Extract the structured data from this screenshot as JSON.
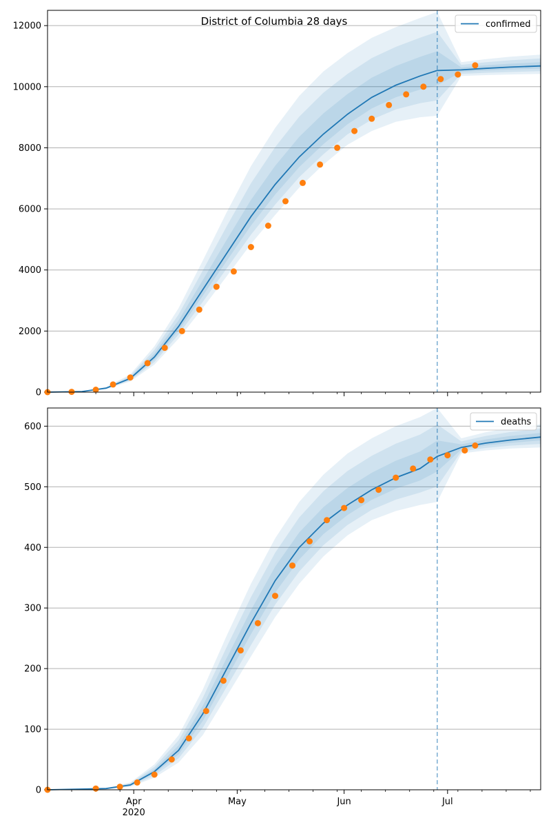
{
  "figure": {
    "title": "District of Columbia 28 days",
    "colors": {
      "median_line": "#1f77b4",
      "band": "#1f77b4",
      "observed": "#ff7f0e",
      "forecast_marker": "#1f77b4",
      "grid": "#b0b0b0"
    }
  },
  "chart_data": [
    {
      "type": "line",
      "title": "District of Columbia 28 days",
      "xlabel": "",
      "ylabel": "",
      "legend": [
        "confirmed"
      ],
      "legend_position": "top-right",
      "grid": "horizontal",
      "xlim": [
        "2020-03-07",
        "2020-07-28"
      ],
      "ylim": [
        0,
        12500
      ],
      "yticks": [
        0,
        2000,
        4000,
        6000,
        8000,
        10000,
        12000
      ],
      "xticks": [
        {
          "date": "2020-04-01",
          "label": "Apr",
          "sublabel": "2020"
        },
        {
          "date": "2020-05-01",
          "label": "May",
          "sublabel": ""
        },
        {
          "date": "2020-06-01",
          "label": "Jun",
          "sublabel": ""
        },
        {
          "date": "2020-07-01",
          "label": "Jul",
          "sublabel": ""
        }
      ],
      "forecast_start": "2020-06-28",
      "series": [
        {
          "name": "confirmed",
          "kind": "median",
          "x": [
            "2020-03-07",
            "2020-03-17",
            "2020-03-24",
            "2020-03-31",
            "2020-04-07",
            "2020-04-14",
            "2020-04-21",
            "2020-04-28",
            "2020-05-05",
            "2020-05-12",
            "2020-05-19",
            "2020-05-26",
            "2020-06-02",
            "2020-06-09",
            "2020-06-16",
            "2020-06-23",
            "2020-06-28",
            "2020-07-05",
            "2020-07-12",
            "2020-07-19",
            "2020-07-28"
          ],
          "values": [
            0,
            20,
            130,
            450,
            1150,
            2150,
            3350,
            4550,
            5750,
            6800,
            7700,
            8450,
            9100,
            9650,
            10050,
            10350,
            10530,
            10550,
            10600,
            10640,
            10680
          ]
        },
        {
          "name": "",
          "kind": "band",
          "x": [
            "2020-03-07",
            "2020-03-17",
            "2020-03-24",
            "2020-03-31",
            "2020-04-07",
            "2020-04-14",
            "2020-04-21",
            "2020-04-28",
            "2020-05-05",
            "2020-05-12",
            "2020-05-19",
            "2020-05-26",
            "2020-06-02",
            "2020-06-09",
            "2020-06-16",
            "2020-06-23",
            "2020-06-28",
            "2020-07-05",
            "2020-07-12",
            "2020-07-19",
            "2020-07-28"
          ],
          "low": [
            0,
            15,
            100,
            350,
            900,
            1750,
            2750,
            3800,
            4850,
            5800,
            6700,
            7450,
            8100,
            8550,
            8850,
            9000,
            9050,
            10350,
            10380,
            10400,
            10420
          ],
          "high": [
            0,
            25,
            170,
            580,
            1500,
            2750,
            4300,
            5900,
            7400,
            8650,
            9700,
            10500,
            11100,
            11600,
            11950,
            12250,
            12450,
            10800,
            10900,
            10980,
            11050
          ]
        },
        {
          "name": "",
          "kind": "observed",
          "x": [
            "2020-03-07",
            "2020-03-14",
            "2020-03-21",
            "2020-03-26",
            "2020-03-31",
            "2020-04-05",
            "2020-04-10",
            "2020-04-15",
            "2020-04-20",
            "2020-04-25",
            "2020-04-30",
            "2020-05-05",
            "2020-05-10",
            "2020-05-15",
            "2020-05-20",
            "2020-05-25",
            "2020-05-30",
            "2020-06-04",
            "2020-06-09",
            "2020-06-14",
            "2020-06-19",
            "2020-06-24",
            "2020-06-29",
            "2020-07-04",
            "2020-07-09"
          ],
          "values": [
            0,
            10,
            80,
            250,
            480,
            950,
            1450,
            2000,
            2700,
            3450,
            3950,
            4750,
            5450,
            6250,
            6850,
            7450,
            8000,
            8550,
            8950,
            9400,
            9750,
            10000,
            10250,
            10400,
            10700
          ]
        }
      ]
    },
    {
      "type": "line",
      "title": "",
      "xlabel": "",
      "ylabel": "",
      "legend": [
        "deaths"
      ],
      "legend_position": "top-right",
      "grid": "horizontal",
      "xlim": [
        "2020-03-07",
        "2020-07-28"
      ],
      "ylim": [
        0,
        630
      ],
      "yticks": [
        0,
        100,
        200,
        300,
        400,
        500,
        600
      ],
      "xticks": [
        {
          "date": "2020-04-01",
          "label": "Apr",
          "sublabel": "2020"
        },
        {
          "date": "2020-05-01",
          "label": "May",
          "sublabel": ""
        },
        {
          "date": "2020-06-01",
          "label": "Jun",
          "sublabel": ""
        },
        {
          "date": "2020-07-01",
          "label": "Jul",
          "sublabel": ""
        }
      ],
      "forecast_start": "2020-06-28",
      "series": [
        {
          "name": "deaths",
          "kind": "median",
          "x": [
            "2020-03-07",
            "2020-03-24",
            "2020-03-31",
            "2020-04-07",
            "2020-04-14",
            "2020-04-21",
            "2020-04-28",
            "2020-05-05",
            "2020-05-12",
            "2020-05-19",
            "2020-05-26",
            "2020-06-02",
            "2020-06-09",
            "2020-06-16",
            "2020-06-23",
            "2020-06-28",
            "2020-07-05",
            "2020-07-12",
            "2020-07-19",
            "2020-07-28"
          ],
          "values": [
            0,
            2,
            8,
            30,
            65,
            125,
            200,
            275,
            345,
            400,
            440,
            470,
            495,
            515,
            530,
            550,
            565,
            572,
            577,
            582
          ]
        },
        {
          "name": "",
          "kind": "band",
          "x": [
            "2020-03-07",
            "2020-03-24",
            "2020-03-31",
            "2020-04-07",
            "2020-04-14",
            "2020-04-21",
            "2020-04-28",
            "2020-05-05",
            "2020-05-12",
            "2020-05-19",
            "2020-05-26",
            "2020-06-02",
            "2020-06-09",
            "2020-06-16",
            "2020-06-23",
            "2020-06-28",
            "2020-07-05",
            "2020-07-12",
            "2020-07-19",
            "2020-07-28"
          ],
          "low": [
            0,
            1,
            5,
            20,
            45,
            90,
            155,
            220,
            285,
            340,
            385,
            420,
            445,
            460,
            470,
            475,
            555,
            560,
            563,
            565
          ],
          "high": [
            0,
            3,
            12,
            42,
            90,
            165,
            255,
            340,
            415,
            475,
            520,
            555,
            580,
            600,
            615,
            630,
            580,
            590,
            597,
            603
          ]
        },
        {
          "name": "",
          "kind": "observed",
          "x": [
            "2020-03-07",
            "2020-03-21",
            "2020-03-28",
            "2020-04-02",
            "2020-04-07",
            "2020-04-12",
            "2020-04-17",
            "2020-04-22",
            "2020-04-27",
            "2020-05-02",
            "2020-05-07",
            "2020-05-12",
            "2020-05-17",
            "2020-05-22",
            "2020-05-27",
            "2020-06-01",
            "2020-06-06",
            "2020-06-11",
            "2020-06-16",
            "2020-06-21",
            "2020-06-26",
            "2020-07-01",
            "2020-07-06",
            "2020-07-09"
          ],
          "values": [
            0,
            2,
            5,
            12,
            25,
            50,
            85,
            130,
            180,
            230,
            275,
            320,
            370,
            410,
            445,
            465,
            478,
            495,
            515,
            530,
            545,
            552,
            560,
            568
          ]
        }
      ]
    }
  ]
}
